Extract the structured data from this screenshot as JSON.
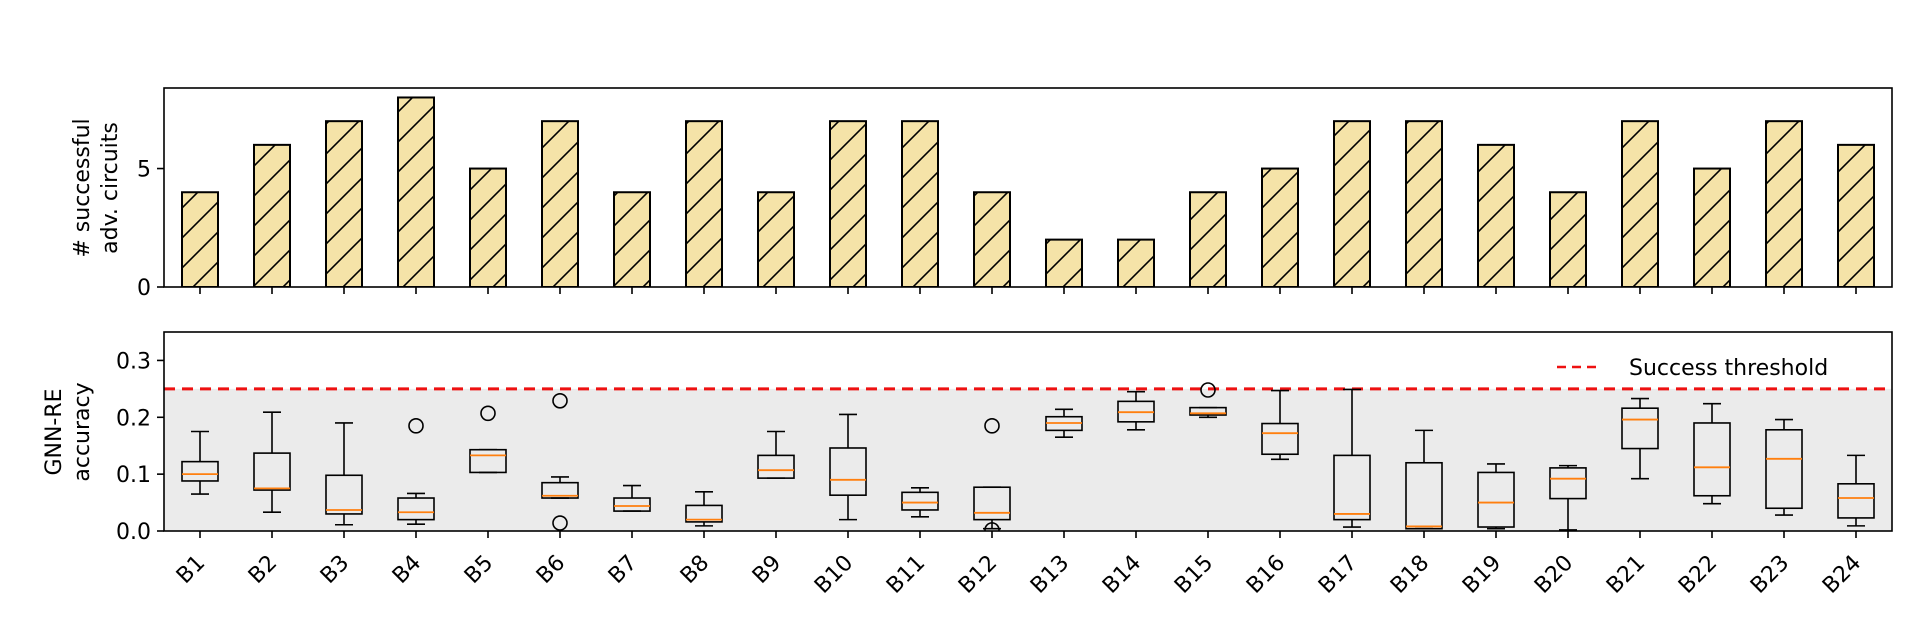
{
  "chart_data": [
    {
      "type": "bar",
      "ylabel": [
        "# successful",
        "adv. circuits"
      ],
      "ylim": [
        0,
        8.4
      ],
      "yticks": [
        0,
        5
      ],
      "bar_color": "#f5e3a8",
      "edge_color": "#000000",
      "hatch": "/",
      "categories": [
        "B1",
        "B2",
        "B3",
        "B4",
        "B5",
        "B6",
        "B7",
        "B8",
        "B9",
        "B10",
        "B11",
        "B12",
        "B13",
        "B14",
        "B15",
        "B16",
        "B17",
        "B18",
        "B19",
        "B20",
        "B21",
        "B22",
        "B23",
        "B24"
      ],
      "values": [
        4,
        6,
        7,
        8,
        5,
        7,
        4,
        7,
        4,
        7,
        7,
        4,
        2,
        2,
        4,
        5,
        7,
        7,
        6,
        4,
        7,
        5,
        7,
        6
      ]
    },
    {
      "type": "box",
      "ylabel": [
        "GNN-RE",
        "accuracy"
      ],
      "ylim": [
        0,
        0.35
      ],
      "yticks": [
        0.0,
        0.1,
        0.2,
        0.3
      ],
      "ytick_labels": [
        "0.0",
        "0.1",
        "0.2",
        "0.3"
      ],
      "shade_color": "#ebebeb",
      "median_color": "#ff7f0e",
      "threshold": {
        "value": 0.25,
        "label": "Success threshold",
        "color": "#ee1111",
        "legend_position": "top-right"
      },
      "categories": [
        "B1",
        "B2",
        "B3",
        "B4",
        "B5",
        "B6",
        "B7",
        "B8",
        "B9",
        "B10",
        "B11",
        "B12",
        "B13",
        "B14",
        "B15",
        "B16",
        "B17",
        "B18",
        "B19",
        "B20",
        "B21",
        "B22",
        "B23",
        "B24"
      ],
      "boxes": [
        {
          "whislo": 0.065,
          "q1": 0.088,
          "med": 0.1,
          "q3": 0.122,
          "whishi": 0.175,
          "fliers": []
        },
        {
          "whislo": 0.033,
          "q1": 0.072,
          "med": 0.075,
          "q3": 0.137,
          "whishi": 0.209,
          "fliers": []
        },
        {
          "whislo": 0.011,
          "q1": 0.03,
          "med": 0.037,
          "q3": 0.098,
          "whishi": 0.19,
          "fliers": []
        },
        {
          "whislo": 0.012,
          "q1": 0.02,
          "med": 0.033,
          "q3": 0.058,
          "whishi": 0.066,
          "fliers": [
            0.185
          ]
        },
        {
          "whislo": 0.103,
          "q1": 0.103,
          "med": 0.133,
          "q3": 0.143,
          "whishi": 0.143,
          "fliers": [
            0.207
          ]
        },
        {
          "whislo": 0.058,
          "q1": 0.058,
          "med": 0.062,
          "q3": 0.085,
          "whishi": 0.095,
          "fliers": [
            0.229,
            0.014
          ]
        },
        {
          "whislo": 0.035,
          "q1": 0.035,
          "med": 0.044,
          "q3": 0.058,
          "whishi": 0.08,
          "fliers": []
        },
        {
          "whislo": 0.009,
          "q1": 0.016,
          "med": 0.02,
          "q3": 0.045,
          "whishi": 0.069,
          "fliers": []
        },
        {
          "whislo": 0.093,
          "q1": 0.093,
          "med": 0.107,
          "q3": 0.133,
          "whishi": 0.175,
          "fliers": []
        },
        {
          "whislo": 0.02,
          "q1": 0.063,
          "med": 0.09,
          "q3": 0.146,
          "whishi": 0.205,
          "fliers": []
        },
        {
          "whislo": 0.025,
          "q1": 0.037,
          "med": 0.05,
          "q3": 0.068,
          "whishi": 0.076,
          "fliers": []
        },
        {
          "whislo": 0.004,
          "q1": 0.02,
          "med": 0.032,
          "q3": 0.077,
          "whishi": 0.077,
          "fliers": [
            0.185,
            0.002
          ]
        },
        {
          "whislo": 0.165,
          "q1": 0.177,
          "med": 0.19,
          "q3": 0.201,
          "whishi": 0.214,
          "fliers": []
        },
        {
          "whislo": 0.178,
          "q1": 0.192,
          "med": 0.209,
          "q3": 0.228,
          "whishi": 0.245,
          "fliers": []
        },
        {
          "whislo": 0.2,
          "q1": 0.204,
          "med": 0.207,
          "q3": 0.217,
          "whishi": 0.217,
          "fliers": [
            0.248
          ]
        },
        {
          "whislo": 0.126,
          "q1": 0.135,
          "med": 0.172,
          "q3": 0.189,
          "whishi": 0.247,
          "fliers": []
        },
        {
          "whislo": 0.007,
          "q1": 0.02,
          "med": 0.03,
          "q3": 0.133,
          "whishi": 0.249,
          "fliers": []
        },
        {
          "whislo": 0.004,
          "q1": 0.004,
          "med": 0.008,
          "q3": 0.12,
          "whishi": 0.177,
          "fliers": []
        },
        {
          "whislo": 0.004,
          "q1": 0.007,
          "med": 0.05,
          "q3": 0.103,
          "whishi": 0.118,
          "fliers": []
        },
        {
          "whislo": 0.002,
          "q1": 0.057,
          "med": 0.092,
          "q3": 0.111,
          "whishi": 0.115,
          "fliers": []
        },
        {
          "whislo": 0.092,
          "q1": 0.145,
          "med": 0.196,
          "q3": 0.216,
          "whishi": 0.233,
          "fliers": []
        },
        {
          "whislo": 0.048,
          "q1": 0.062,
          "med": 0.112,
          "q3": 0.19,
          "whishi": 0.224,
          "fliers": []
        },
        {
          "whislo": 0.028,
          "q1": 0.04,
          "med": 0.127,
          "q3": 0.178,
          "whishi": 0.196,
          "fliers": []
        },
        {
          "whislo": 0.009,
          "q1": 0.023,
          "med": 0.058,
          "q3": 0.083,
          "whishi": 0.133,
          "fliers": []
        }
      ]
    }
  ]
}
